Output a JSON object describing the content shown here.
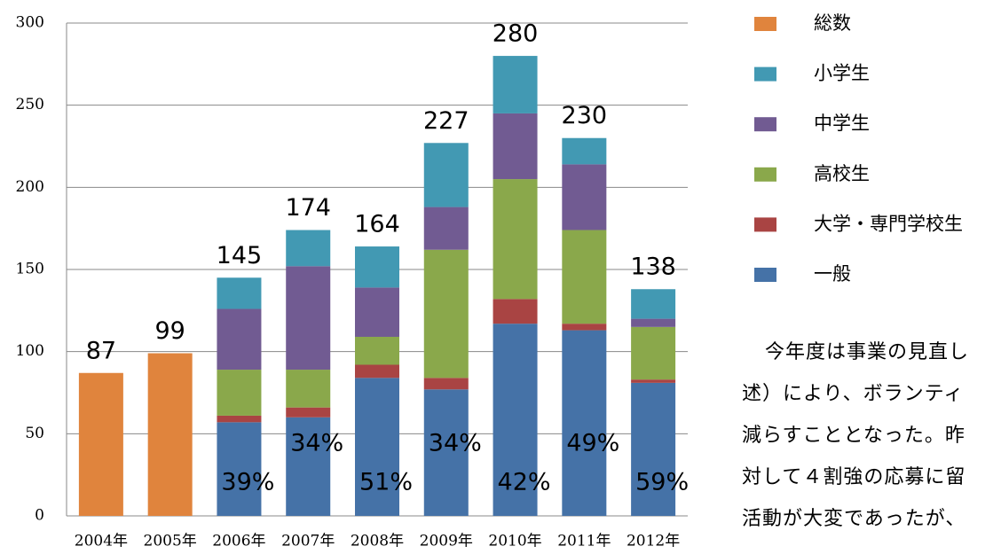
{
  "chart_data": {
    "type": "stacked_bar",
    "categories": [
      "2004年",
      "2005年",
      "2006年",
      "2007年",
      "2008年",
      "2009年",
      "2010年",
      "2011年",
      "2012年"
    ],
    "series": [
      {
        "name": "総数",
        "color": "#e0843d",
        "values": [
          87,
          99,
          null,
          null,
          null,
          null,
          null,
          null,
          null
        ]
      },
      {
        "name": "小学生",
        "color": "#4299b3",
        "values": [
          null,
          null,
          19,
          22,
          25,
          39,
          35,
          16,
          18
        ]
      },
      {
        "name": "中学生",
        "color": "#715b92",
        "values": [
          null,
          null,
          37,
          63,
          30,
          26,
          40,
          40,
          5
        ]
      },
      {
        "name": "高校生",
        "color": "#8aa84b",
        "values": [
          null,
          null,
          28,
          23,
          17,
          78,
          73,
          57,
          32
        ]
      },
      {
        "name": "大学・専門学校生",
        "color": "#a94443",
        "values": [
          null,
          null,
          4,
          6,
          8,
          7,
          15,
          4,
          2
        ]
      },
      {
        "name": "一般",
        "color": "#4572a7",
        "values": [
          null,
          null,
          57,
          60,
          84,
          77,
          117,
          113,
          81
        ]
      }
    ],
    "totals": [
      null,
      null,
      145,
      174,
      164,
      227,
      280,
      230,
      138
    ],
    "share_labels": [
      null,
      null,
      "39%",
      "34%",
      "51%",
      "34%",
      "42%",
      "49%",
      "59%"
    ],
    "ylim": [
      0,
      300
    ],
    "yticks": [
      0,
      50,
      100,
      150,
      200,
      250,
      300
    ],
    "grid": true
  },
  "text_lines": [
    "今年度は事業の見直し",
    "述）により、ボランティ",
    "減らすこととなった。昨",
    "対して４割強の応募に留",
    "活動が大変であったが、"
  ]
}
